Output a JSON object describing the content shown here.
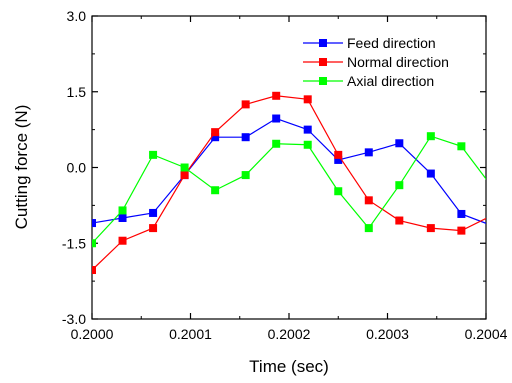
{
  "chart_data": {
    "type": "line",
    "title": "",
    "xlabel": "Time (sec)",
    "ylabel": "Cutting force (N)",
    "xlim": [
      0.2,
      0.2004
    ],
    "ylim": [
      -3.0,
      3.0
    ],
    "x_ticks": [
      "0.2000",
      "0.2001",
      "0.2002",
      "0.2003",
      "0.2004"
    ],
    "y_ticks": [
      "-3.0",
      "-1.5",
      "0.0",
      "1.5",
      "3.0"
    ],
    "grid": false,
    "legend_position": "top-right",
    "x": [
      0.2,
      0.200031,
      0.200062,
      0.200094,
      0.200125,
      0.200156,
      0.200187,
      0.200219,
      0.20025,
      0.200281,
      0.200312,
      0.200344,
      0.200375,
      0.200406
    ],
    "series": [
      {
        "name": "Feed direction",
        "color": "#0000ff",
        "marker": "square",
        "values": [
          -1.1,
          -1.0,
          -0.9,
          -0.15,
          0.6,
          0.6,
          0.97,
          0.75,
          0.15,
          0.3,
          0.48,
          -0.12,
          -0.92,
          -1.15
        ]
      },
      {
        "name": "Normal direction",
        "color": "#ff0000",
        "marker": "square",
        "values": [
          -2.03,
          -1.45,
          -1.2,
          -0.15,
          0.7,
          1.25,
          1.42,
          1.35,
          0.25,
          -0.65,
          -1.05,
          -1.2,
          -1.25,
          -0.95
        ]
      },
      {
        "name": "Axial direction",
        "color": "#00ff00",
        "marker": "square",
        "values": [
          -1.5,
          -0.85,
          0.25,
          0.0,
          -0.45,
          -0.15,
          0.47,
          0.45,
          -0.47,
          -1.2,
          -0.35,
          0.62,
          0.42,
          -0.38
        ]
      }
    ]
  }
}
